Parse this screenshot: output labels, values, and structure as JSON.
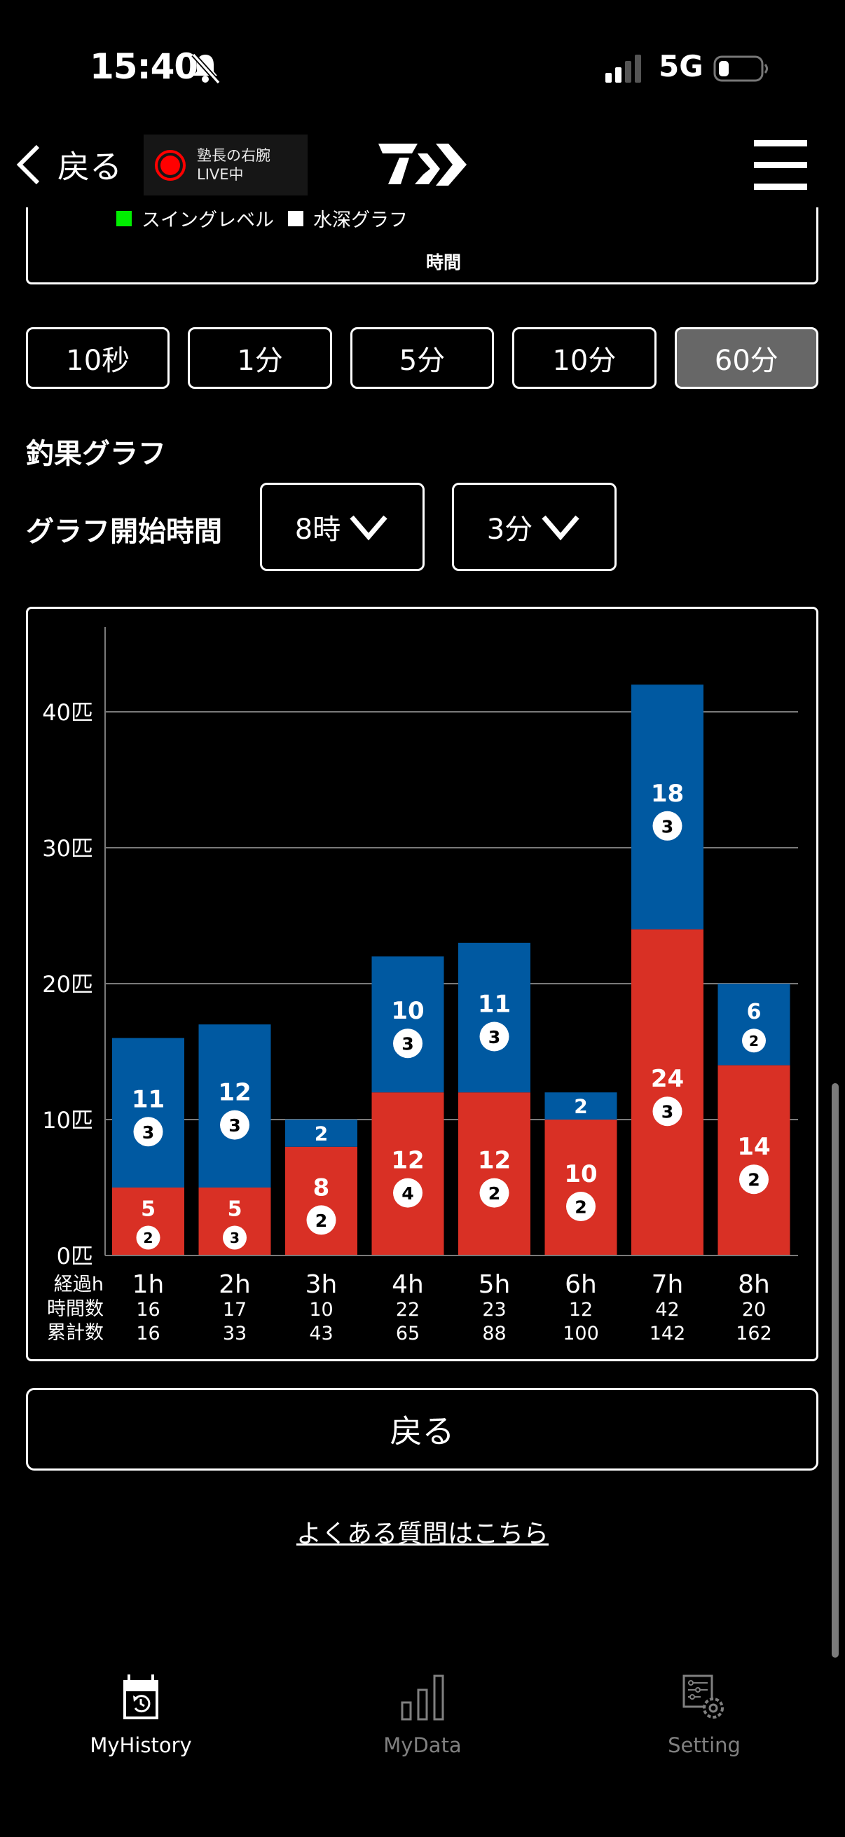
{
  "status_bar": {
    "time": "15:40",
    "network": "5G",
    "icons": [
      "bell-slash-icon",
      "signal-icon",
      "battery-icon"
    ]
  },
  "nav": {
    "back_label": "戻る",
    "live_badge": {
      "line1": "塾長の右腕",
      "line2": "LIVE中"
    },
    "logo": "daiwa-logo",
    "menu_icon": "hamburger-menu-icon"
  },
  "previous_chart": {
    "legend": [
      {
        "label": "スイングレベル",
        "color": "#00ee00"
      },
      {
        "label": "水深グラフ",
        "color": "#ffffff"
      }
    ],
    "xlabel": "時間"
  },
  "interval_buttons": [
    {
      "label": "10秒",
      "active": false
    },
    {
      "label": "1分",
      "active": false
    },
    {
      "label": "5分",
      "active": false
    },
    {
      "label": "10分",
      "active": false
    },
    {
      "label": "60分",
      "active": true
    }
  ],
  "section_title": "釣果グラフ",
  "start_time": {
    "label": "グラフ開始時間",
    "hour": "8時",
    "minute": "3分"
  },
  "colors": {
    "red_series": "#d93025",
    "blue_series": "#0059a1",
    "grid": "#7a7a7a",
    "active_button": "#676767"
  },
  "chart_data": {
    "type": "bar",
    "stacked": true,
    "title": "釣果グラフ",
    "xlabel": "経過h",
    "ylabel": "",
    "y_unit": "匹",
    "ylim": [
      0,
      46
    ],
    "yticks": [
      0,
      10,
      20,
      30,
      40
    ],
    "ytick_labels": [
      "0匹",
      "10匹",
      "20匹",
      "30匹",
      "40匹"
    ],
    "grid": true,
    "categories": [
      "1h",
      "2h",
      "3h",
      "4h",
      "5h",
      "6h",
      "7h",
      "8h"
    ],
    "series": [
      {
        "name": "red",
        "color": "#d93025",
        "values": [
          5,
          5,
          8,
          12,
          12,
          10,
          24,
          14
        ],
        "badges": [
          2,
          3,
          2,
          4,
          2,
          2,
          3,
          2
        ]
      },
      {
        "name": "blue",
        "color": "#0059a1",
        "values": [
          11,
          12,
          2,
          10,
          11,
          2,
          18,
          6
        ],
        "badges": [
          3,
          3,
          null,
          3,
          3,
          null,
          3,
          2
        ]
      }
    ],
    "table": {
      "row_labels": [
        "経過h",
        "時間数",
        "累計数"
      ],
      "hourly_totals": [
        16,
        17,
        10,
        22,
        23,
        12,
        42,
        20
      ],
      "cumulative_totals": [
        16,
        33,
        43,
        65,
        88,
        100,
        142,
        162
      ]
    }
  },
  "back_button": "戻る",
  "faq_link": "よくある質問はこちら",
  "tabbar": [
    {
      "label": "MyHistory",
      "icon": "calendar-history-icon",
      "active": true
    },
    {
      "label": "MyData",
      "icon": "bar-chart-icon",
      "active": false
    },
    {
      "label": "Setting",
      "icon": "settings-gear-icon",
      "active": false
    }
  ]
}
